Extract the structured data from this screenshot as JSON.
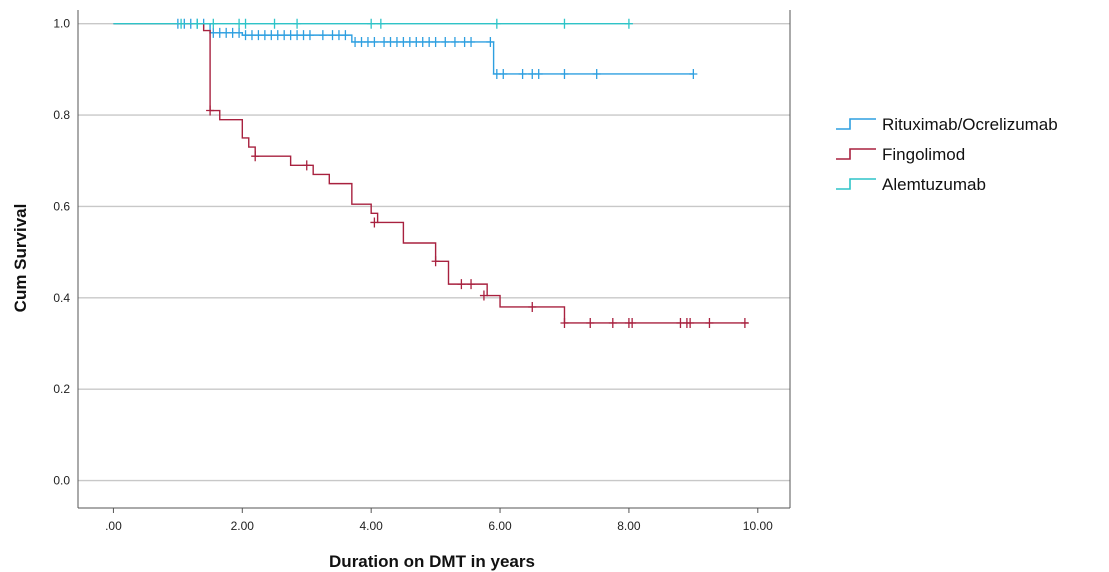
{
  "chart_data": {
    "type": "line",
    "title": "",
    "xlabel": "Duration on DMT in years",
    "ylabel": "Cum Survival",
    "xlim": [
      -0.55,
      10.5
    ],
    "ylim": [
      -0.06,
      1.03
    ],
    "x_ticks": [
      0,
      2,
      4,
      6,
      8,
      10
    ],
    "x_tick_labels": [
      ".00",
      "2.00",
      "4.00",
      "6.00",
      "8.00",
      "10.00"
    ],
    "y_ticks": [
      0,
      0.2,
      0.4,
      0.6,
      0.8,
      1.0
    ],
    "y_tick_labels": [
      "0.0",
      "0.2",
      "0.4",
      "0.6",
      "0.8",
      "1.0"
    ],
    "grid": "horizontal",
    "legend_position": "right",
    "series": [
      {
        "name": "Rituximab/Ocrelizumab",
        "color": "#2e9fe0",
        "steps": [
          [
            0,
            1.0
          ],
          [
            1.5,
            0.98
          ],
          [
            2.0,
            0.975
          ],
          [
            3.7,
            0.96
          ],
          [
            5.9,
            0.89
          ],
          [
            9.0,
            0.89
          ]
        ],
        "censored": [
          [
            1.0,
            1.0
          ],
          [
            1.1,
            1.0
          ],
          [
            1.2,
            1.0
          ],
          [
            1.3,
            1.0
          ],
          [
            1.4,
            1.0
          ],
          [
            1.55,
            0.98
          ],
          [
            1.65,
            0.98
          ],
          [
            1.75,
            0.98
          ],
          [
            1.85,
            0.98
          ],
          [
            1.95,
            0.98
          ],
          [
            2.05,
            0.975
          ],
          [
            2.15,
            0.975
          ],
          [
            2.25,
            0.975
          ],
          [
            2.35,
            0.975
          ],
          [
            2.45,
            0.975
          ],
          [
            2.55,
            0.975
          ],
          [
            2.65,
            0.975
          ],
          [
            2.75,
            0.975
          ],
          [
            2.85,
            0.975
          ],
          [
            2.95,
            0.975
          ],
          [
            3.05,
            0.975
          ],
          [
            3.25,
            0.975
          ],
          [
            3.4,
            0.975
          ],
          [
            3.5,
            0.975
          ],
          [
            3.6,
            0.975
          ],
          [
            3.75,
            0.96
          ],
          [
            3.85,
            0.96
          ],
          [
            3.95,
            0.96
          ],
          [
            4.05,
            0.96
          ],
          [
            4.2,
            0.96
          ],
          [
            4.3,
            0.96
          ],
          [
            4.4,
            0.96
          ],
          [
            4.5,
            0.96
          ],
          [
            4.6,
            0.96
          ],
          [
            4.7,
            0.96
          ],
          [
            4.8,
            0.96
          ],
          [
            4.9,
            0.96
          ],
          [
            5.0,
            0.96
          ],
          [
            5.15,
            0.96
          ],
          [
            5.3,
            0.96
          ],
          [
            5.45,
            0.96
          ],
          [
            5.55,
            0.96
          ],
          [
            5.85,
            0.96
          ],
          [
            5.95,
            0.89
          ],
          [
            6.05,
            0.89
          ],
          [
            6.35,
            0.89
          ],
          [
            6.5,
            0.89
          ],
          [
            6.6,
            0.89
          ],
          [
            7.0,
            0.89
          ],
          [
            7.5,
            0.89
          ],
          [
            9.0,
            0.89
          ]
        ]
      },
      {
        "name": "Fingolimod",
        "color": "#a8213f",
        "steps": [
          [
            0,
            1.0
          ],
          [
            1.4,
            0.985
          ],
          [
            1.5,
            0.81
          ],
          [
            1.65,
            0.79
          ],
          [
            2.0,
            0.75
          ],
          [
            2.1,
            0.73
          ],
          [
            2.2,
            0.71
          ],
          [
            2.75,
            0.69
          ],
          [
            3.1,
            0.67
          ],
          [
            3.35,
            0.65
          ],
          [
            3.7,
            0.605
          ],
          [
            4.0,
            0.585
          ],
          [
            4.1,
            0.565
          ],
          [
            4.5,
            0.52
          ],
          [
            5.0,
            0.48
          ],
          [
            5.2,
            0.43
          ],
          [
            5.8,
            0.405
          ],
          [
            6.0,
            0.38
          ],
          [
            7.0,
            0.345
          ],
          [
            9.85,
            0.345
          ]
        ],
        "censored": [
          [
            1.5,
            0.81
          ],
          [
            2.2,
            0.71
          ],
          [
            3.0,
            0.69
          ],
          [
            4.05,
            0.565
          ],
          [
            5.0,
            0.48
          ],
          [
            5.4,
            0.43
          ],
          [
            5.55,
            0.43
          ],
          [
            5.75,
            0.405
          ],
          [
            6.5,
            0.38
          ],
          [
            7.0,
            0.345
          ],
          [
            7.4,
            0.345
          ],
          [
            7.75,
            0.345
          ],
          [
            8.0,
            0.345
          ],
          [
            8.05,
            0.345
          ],
          [
            8.8,
            0.345
          ],
          [
            8.9,
            0.345
          ],
          [
            8.95,
            0.345
          ],
          [
            9.25,
            0.345
          ],
          [
            9.8,
            0.345
          ]
        ]
      },
      {
        "name": "Alemtuzumab",
        "color": "#2ec4c8",
        "steps": [
          [
            0,
            1.0
          ],
          [
            8.0,
            1.0
          ]
        ],
        "censored": [
          [
            1.05,
            1.0
          ],
          [
            1.3,
            1.0
          ],
          [
            1.55,
            1.0
          ],
          [
            1.95,
            1.0
          ],
          [
            2.05,
            1.0
          ],
          [
            2.5,
            1.0
          ],
          [
            2.85,
            1.0
          ],
          [
            4.0,
            1.0
          ],
          [
            4.15,
            1.0
          ],
          [
            5.95,
            1.0
          ],
          [
            7.0,
            1.0
          ],
          [
            8.0,
            1.0
          ]
        ]
      }
    ]
  }
}
